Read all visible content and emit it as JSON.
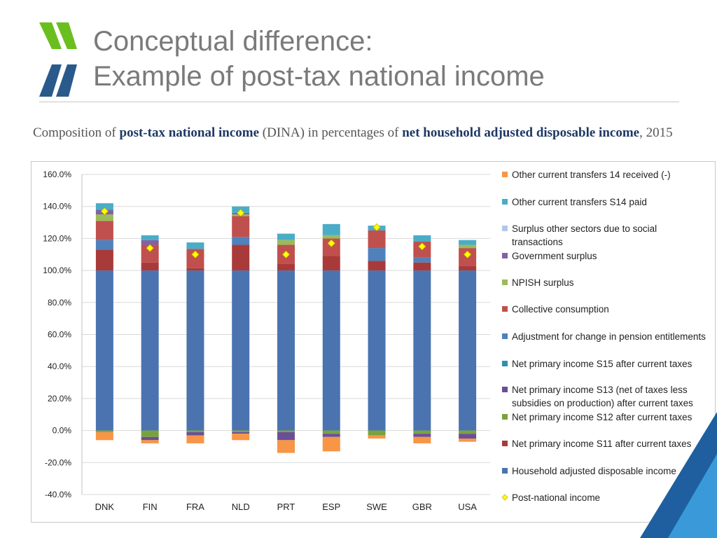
{
  "header": {
    "title_line1": "Conceptual difference:",
    "title_line2": "Example of post-tax national income"
  },
  "caption": {
    "part1": "Composition of",
    "bold1": "post-tax national income",
    "part2": "(DINA) in percentages of",
    "bold2": "net household adjusted disposable income",
    "part3": ", 2015"
  },
  "logo": {
    "icon": "double-chevron-logo",
    "colors": [
      "#6abf1e",
      "#2a5a8c"
    ]
  },
  "chart_data": {
    "type": "bar",
    "stacked": true,
    "categories": [
      "DNK",
      "FIN",
      "FRA",
      "NLD",
      "PRT",
      "ESP",
      "SWE",
      "GBR",
      "USA"
    ],
    "ylim": [
      -40,
      160
    ],
    "yticks": [
      "160.0%",
      "140.0%",
      "120.0%",
      "100.0%",
      "80.0%",
      "60.0%",
      "40.0%",
      "20.0%",
      "0.0%",
      "-20.0%",
      "-40.0%"
    ],
    "ytick_values": [
      160,
      140,
      120,
      100,
      80,
      60,
      40,
      20,
      0,
      -20,
      -40
    ],
    "grid": true,
    "legend_position": "right",
    "legend_order": [
      "Other current transfers 14 received (-)",
      "Other current transfers S14 paid",
      "Surplus other sectors due to social transactions",
      "Government surplus",
      "NPISH surplus",
      "Collective consumption",
      "Adjustment for change in pension entitlements",
      "Net primary income S15 after current taxes",
      "Net primary income S13 (net of taxes less subsidies on production) after current taxes",
      "Net primary income S12 after current taxes",
      "Net primary income S11 after current taxes",
      "Household adjusted disposable income",
      "Post-national income"
    ],
    "series": [
      {
        "name": "Household adjusted disposable income",
        "color": "#4a73b0",
        "values": [
          100,
          100,
          100,
          100,
          100,
          100,
          100,
          100,
          100
        ]
      },
      {
        "name": "Net primary income S11 after current taxes",
        "color": "#a93a3a",
        "values": [
          13,
          5,
          1.5,
          16,
          4,
          9,
          6,
          5,
          3
        ]
      },
      {
        "name": "Net primary income S12 after current taxes",
        "color": "#7aa23c",
        "values": [
          -1,
          -4,
          -1,
          -1,
          -1,
          -2,
          -3,
          -2,
          -2
        ]
      },
      {
        "name": "Net primary income S13 (net of taxes less subsidies on production) after current taxes",
        "color": "#6b4f96",
        "values": [
          0,
          -2,
          -2,
          -1,
          -5,
          -2,
          0,
          -2,
          -3
        ]
      },
      {
        "name": "Net primary income S15 after current taxes",
        "color": "#2f8fb0",
        "values": [
          0,
          0,
          0,
          0,
          0,
          0,
          0,
          0,
          0
        ]
      },
      {
        "name": "Adjustment for change in pension entitlements",
        "color": "#4f81bd",
        "values": [
          6,
          0,
          0,
          5,
          0,
          0,
          8,
          3,
          0
        ]
      },
      {
        "name": "Collective consumption",
        "color": "#c0504d",
        "values": [
          12,
          11,
          12,
          13,
          12,
          11,
          11,
          10,
          11
        ]
      },
      {
        "name": "NPISH surplus",
        "color": "#9bbb59",
        "values": [
          4,
          0,
          0,
          1,
          3,
          2,
          0,
          0,
          2
        ]
      },
      {
        "name": "Government surplus",
        "color": "#8064a2",
        "values": [
          3,
          3,
          0,
          1,
          0,
          0,
          0,
          0,
          0
        ]
      },
      {
        "name": "Surplus other sectors due to social transactions",
        "color": "#b3c6e7",
        "values": [
          0,
          0,
          0,
          0,
          0,
          0,
          0,
          0,
          0
        ]
      },
      {
        "name": "Other current transfers S14 paid",
        "color": "#4bacc6",
        "values": [
          4,
          3,
          4,
          4,
          4,
          7,
          3,
          4,
          3
        ]
      },
      {
        "name": "Other current transfers 14 received (-)",
        "color": "#f79646",
        "values": [
          -5,
          -2,
          -5,
          -4,
          -8,
          -9,
          -2,
          -4,
          -2
        ]
      }
    ],
    "markers": {
      "name": "Post-national income",
      "color": "#ffff00",
      "stroke": "#c9b800",
      "values": [
        137,
        114,
        110,
        136,
        110,
        117,
        127,
        115,
        110
      ]
    }
  }
}
